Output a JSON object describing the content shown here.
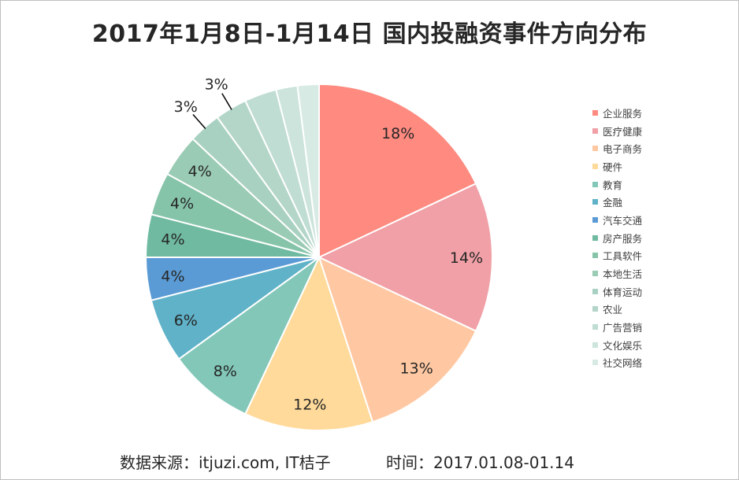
{
  "chart_data": {
    "type": "pie",
    "title": "2017年1月8日-1月14日 国内投融资事件方向分布",
    "unit": "%",
    "legend_position": "right",
    "categories": [
      "企业服务",
      "医疗健康",
      "电子商务",
      "硬件",
      "教育",
      "金融",
      "汽车交通",
      "房产服务",
      "工具软件",
      "本地生活",
      "体育运动",
      "农业",
      "广告营销",
      "文化娱乐",
      "社交网络"
    ],
    "values": [
      18,
      14,
      13,
      12,
      8,
      6,
      4,
      4,
      4,
      4,
      3,
      3,
      3,
      2,
      2
    ],
    "labels": [
      "18%",
      "14%",
      "13%",
      "12%",
      "8%",
      "6%",
      "4%",
      "4%",
      "4%",
      "4%",
      "3%",
      "3%",
      "",
      "",
      ""
    ],
    "colors": [
      "#FF8A80",
      "#F0A0A6",
      "#FFC8A2",
      "#FFDA9A",
      "#82C7B8",
      "#5FB2C8",
      "#5B9BD5",
      "#6FBAA0",
      "#86C4AA",
      "#9ACBB4",
      "#A9D1C1",
      "#B4D6C9",
      "#C0DDD3",
      "#CCE4DC",
      "#D8EAE4"
    ]
  },
  "footer": {
    "source": "数据来源：itjuzi.com, IT桔子",
    "time": "时间：2017.01.08-01.14"
  }
}
